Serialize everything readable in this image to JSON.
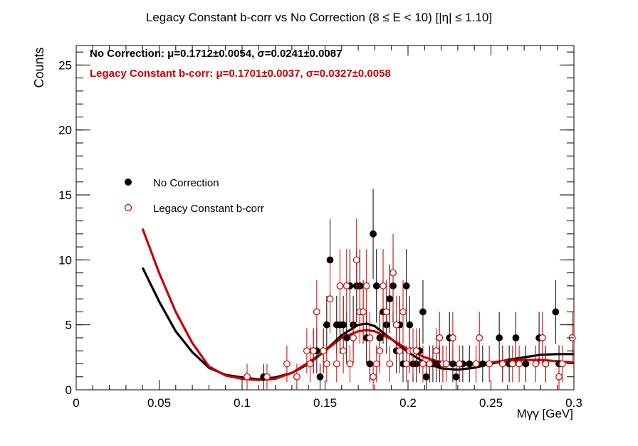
{
  "chart_data": {
    "type": "scatter",
    "title": "Legacy Constant b-corr vs No Correction   (8 ≤ E < 10)   [|η| ≤ 1.10]",
    "xlabel": "Mγγ [GeV]",
    "ylabel": "Counts",
    "xlim": [
      0,
      0.3
    ],
    "ylim": [
      0,
      26.5
    ],
    "x_ticks": [
      0,
      0.05,
      0.1,
      0.15,
      0.2,
      0.25,
      0.3
    ],
    "x_tick_labels": [
      "0",
      "0.05",
      "0.1",
      "0.15",
      "0.2",
      "0.25",
      "0.3"
    ],
    "y_ticks": [
      0,
      5,
      10,
      15,
      20,
      25
    ],
    "y_tick_labels": [
      "0",
      "5",
      "10",
      "15",
      "20",
      "25"
    ],
    "grid": false,
    "legend_position": "middle-left",
    "annotations": [
      {
        "text": "No Correction: μ=0.1712±0.0054, σ=0.0241±0.0087",
        "color": "#000000"
      },
      {
        "text": "Legacy Constant b-corr: μ=0.1701±0.0037, σ=0.0327±0.0058",
        "color": "#cc0000"
      }
    ],
    "series": [
      {
        "name": "No Correction",
        "marker": "filled-circle",
        "color": "#000000",
        "points": [
          [
            0.113,
            1
          ],
          [
            0.143,
            3
          ],
          [
            0.145,
            3
          ],
          [
            0.147,
            1
          ],
          [
            0.149,
            3
          ],
          [
            0.151,
            5
          ],
          [
            0.153,
            10
          ],
          [
            0.157,
            5
          ],
          [
            0.159,
            5
          ],
          [
            0.161,
            5
          ],
          [
            0.163,
            4
          ],
          [
            0.165,
            8
          ],
          [
            0.167,
            5
          ],
          [
            0.169,
            8
          ],
          [
            0.171,
            8
          ],
          [
            0.173,
            6
          ],
          [
            0.175,
            4
          ],
          [
            0.177,
            2
          ],
          [
            0.179,
            12
          ],
          [
            0.181,
            8
          ],
          [
            0.183,
            4
          ],
          [
            0.185,
            6
          ],
          [
            0.187,
            5
          ],
          [
            0.189,
            7
          ],
          [
            0.191,
            8
          ],
          [
            0.193,
            3
          ],
          [
            0.195,
            5
          ],
          [
            0.197,
            2
          ],
          [
            0.199,
            8
          ],
          [
            0.201,
            5
          ],
          [
            0.203,
            2
          ],
          [
            0.205,
            2
          ],
          [
            0.207,
            3
          ],
          [
            0.209,
            6
          ],
          [
            0.211,
            1
          ],
          [
            0.213,
            2
          ],
          [
            0.215,
            2
          ],
          [
            0.217,
            2
          ],
          [
            0.219,
            2
          ],
          [
            0.221,
            2
          ],
          [
            0.225,
            4
          ],
          [
            0.227,
            2
          ],
          [
            0.229,
            1
          ],
          [
            0.233,
            2
          ],
          [
            0.237,
            2
          ],
          [
            0.241,
            2
          ],
          [
            0.245,
            2
          ],
          [
            0.255,
            4
          ],
          [
            0.257,
            2
          ],
          [
            0.261,
            2
          ],
          [
            0.265,
            4
          ],
          [
            0.271,
            2
          ],
          [
            0.279,
            4
          ],
          [
            0.283,
            2
          ],
          [
            0.289,
            6
          ],
          [
            0.291,
            2
          ]
        ],
        "fit_curve": [
          [
            0.04,
            9.4
          ],
          [
            0.05,
            6.8
          ],
          [
            0.06,
            4.5
          ],
          [
            0.07,
            2.9
          ],
          [
            0.08,
            1.7
          ],
          [
            0.09,
            1.15
          ],
          [
            0.1,
            0.95
          ],
          [
            0.11,
            0.8
          ],
          [
            0.12,
            0.95
          ],
          [
            0.13,
            1.3
          ],
          [
            0.14,
            2.0
          ],
          [
            0.15,
            3.0
          ],
          [
            0.16,
            4.2
          ],
          [
            0.17,
            5.0
          ],
          [
            0.175,
            5.1
          ],
          [
            0.18,
            4.9
          ],
          [
            0.19,
            3.9
          ],
          [
            0.2,
            2.9
          ],
          [
            0.21,
            2.1
          ],
          [
            0.22,
            1.65
          ],
          [
            0.23,
            1.55
          ],
          [
            0.24,
            1.7
          ],
          [
            0.25,
            2.0
          ],
          [
            0.26,
            2.3
          ],
          [
            0.27,
            2.5
          ],
          [
            0.28,
            2.7
          ],
          [
            0.29,
            2.75
          ],
          [
            0.3,
            2.75
          ]
        ]
      },
      {
        "name": "Legacy Constant b-corr",
        "marker": "open-circle",
        "color": "#cc0000",
        "points": [
          [
            0.103,
            1
          ],
          [
            0.115,
            1
          ],
          [
            0.127,
            2
          ],
          [
            0.133,
            1
          ],
          [
            0.139,
            3
          ],
          [
            0.141,
            2
          ],
          [
            0.143,
            3
          ],
          [
            0.145,
            6
          ],
          [
            0.149,
            3
          ],
          [
            0.151,
            2
          ],
          [
            0.153,
            7
          ],
          [
            0.157,
            2
          ],
          [
            0.159,
            8
          ],
          [
            0.161,
            3
          ],
          [
            0.163,
            8
          ],
          [
            0.165,
            2
          ],
          [
            0.167,
            4
          ],
          [
            0.169,
            10
          ],
          [
            0.171,
            6
          ],
          [
            0.173,
            6
          ],
          [
            0.175,
            8
          ],
          [
            0.177,
            4
          ],
          [
            0.179,
            1
          ],
          [
            0.181,
            2
          ],
          [
            0.183,
            3
          ],
          [
            0.185,
            8
          ],
          [
            0.187,
            6
          ],
          [
            0.189,
            2
          ],
          [
            0.191,
            9
          ],
          [
            0.193,
            5
          ],
          [
            0.195,
            3
          ],
          [
            0.197,
            6
          ],
          [
            0.199,
            2
          ],
          [
            0.201,
            3
          ],
          [
            0.203,
            3
          ],
          [
            0.205,
            3
          ],
          [
            0.209,
            2
          ],
          [
            0.213,
            2
          ],
          [
            0.217,
            3
          ],
          [
            0.219,
            4
          ],
          [
            0.221,
            2
          ],
          [
            0.223,
            2
          ],
          [
            0.227,
            4
          ],
          [
            0.231,
            2
          ],
          [
            0.241,
            2
          ],
          [
            0.243,
            4
          ],
          [
            0.249,
            2
          ],
          [
            0.257,
            2
          ],
          [
            0.263,
            2
          ],
          [
            0.267,
            2
          ],
          [
            0.277,
            2
          ],
          [
            0.281,
            4
          ],
          [
            0.283,
            2
          ],
          [
            0.291,
            1
          ],
          [
            0.293,
            2
          ],
          [
            0.299,
            4
          ]
        ],
        "fit_curve": [
          [
            0.04,
            12.4
          ],
          [
            0.05,
            9.0
          ],
          [
            0.06,
            6.0
          ],
          [
            0.07,
            3.6
          ],
          [
            0.08,
            1.8
          ],
          [
            0.09,
            1.1
          ],
          [
            0.1,
            0.85
          ],
          [
            0.11,
            0.75
          ],
          [
            0.12,
            0.85
          ],
          [
            0.13,
            1.3
          ],
          [
            0.14,
            2.1
          ],
          [
            0.15,
            3.0
          ],
          [
            0.16,
            4.0
          ],
          [
            0.17,
            4.5
          ],
          [
            0.175,
            4.6
          ],
          [
            0.18,
            4.5
          ],
          [
            0.19,
            3.9
          ],
          [
            0.2,
            3.1
          ],
          [
            0.21,
            2.5
          ],
          [
            0.22,
            2.1
          ],
          [
            0.23,
            1.95
          ],
          [
            0.24,
            2.0
          ],
          [
            0.25,
            2.1
          ],
          [
            0.26,
            2.25
          ],
          [
            0.27,
            2.3
          ],
          [
            0.28,
            2.3
          ],
          [
            0.29,
            2.2
          ],
          [
            0.3,
            2.1
          ]
        ]
      }
    ]
  }
}
